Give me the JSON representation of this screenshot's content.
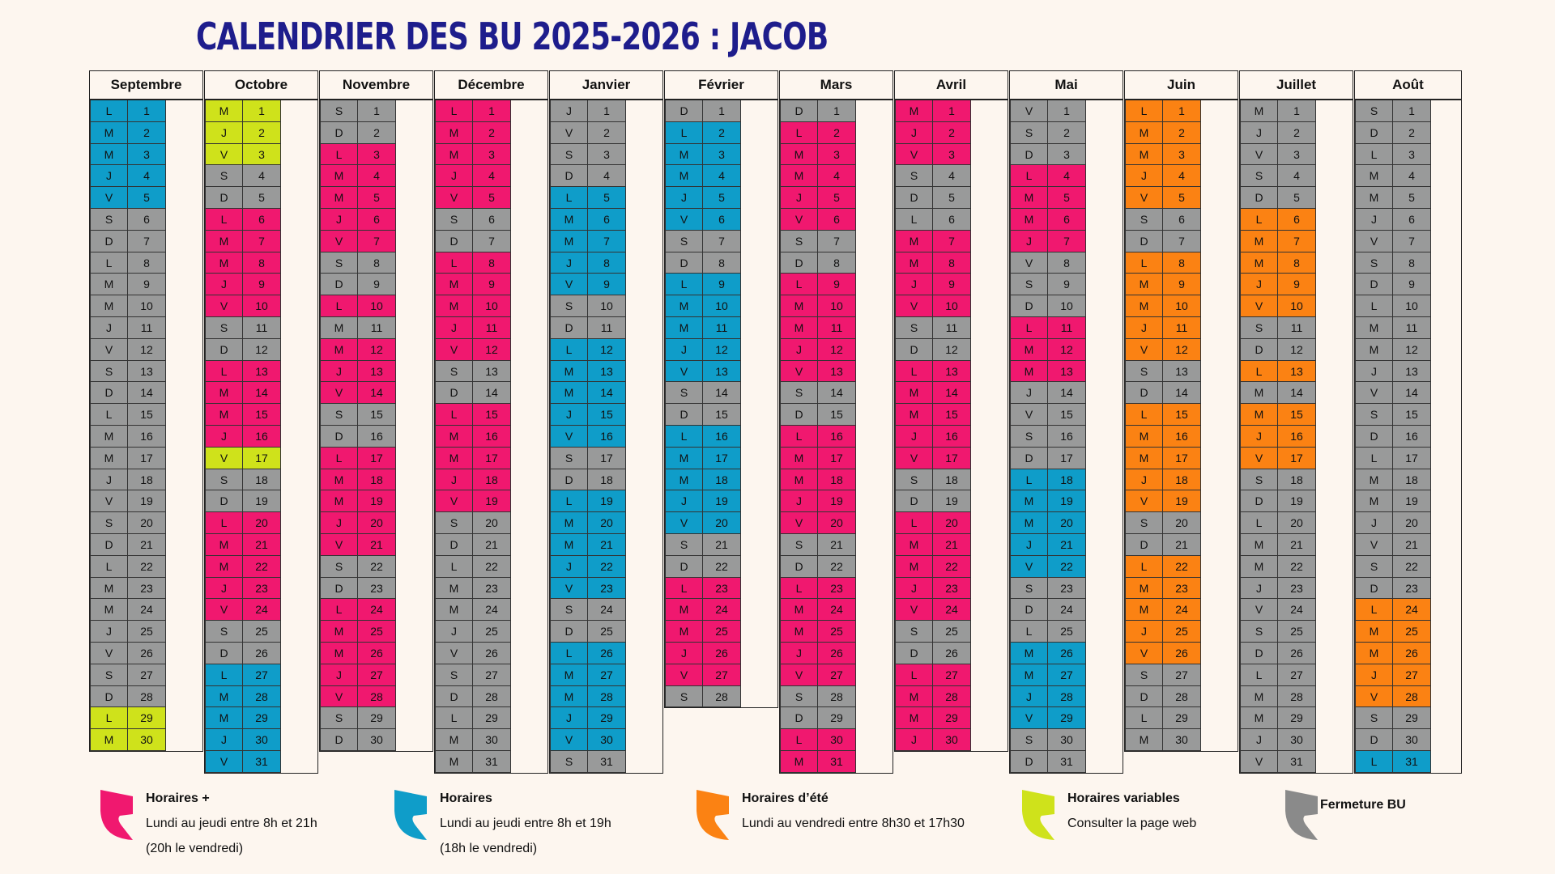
{
  "title": "CALENDRIER DES BU 2025-2026 : JACOB",
  "colors": {
    "G": "#999a9a",
    "P": "#f0186f",
    "B": "#0f9dc9",
    "O": "#fb8213",
    "Y": "#cfe21b"
  },
  "months": [
    {
      "name": "Septembre",
      "days": [
        "L",
        "M",
        "M",
        "J",
        "V",
        "S",
        "D",
        "L",
        "M",
        "M",
        "J",
        "V",
        "S",
        "D",
        "L",
        "M",
        "M",
        "J",
        "V",
        "S",
        "D",
        "L",
        "M",
        "M",
        "J",
        "V",
        "S",
        "D",
        "L",
        "M"
      ],
      "colors": [
        "B",
        "B",
        "B",
        "B",
        "B",
        "G",
        "G",
        "G",
        "G",
        "G",
        "G",
        "G",
        "G",
        "G",
        "G",
        "G",
        "G",
        "G",
        "G",
        "G",
        "G",
        "G",
        "G",
        "G",
        "G",
        "G",
        "G",
        "G",
        "Y",
        "Y"
      ]
    },
    {
      "name": "Octobre",
      "days": [
        "M",
        "J",
        "V",
        "S",
        "D",
        "L",
        "M",
        "M",
        "J",
        "V",
        "S",
        "D",
        "L",
        "M",
        "M",
        "J",
        "V",
        "S",
        "D",
        "L",
        "M",
        "M",
        "J",
        "V",
        "S",
        "D",
        "L",
        "M",
        "M",
        "J",
        "V"
      ],
      "colors": [
        "Y",
        "Y",
        "Y",
        "G",
        "G",
        "P",
        "P",
        "P",
        "P",
        "P",
        "G",
        "G",
        "P",
        "P",
        "P",
        "P",
        "Y",
        "G",
        "G",
        "P",
        "P",
        "P",
        "P",
        "P",
        "G",
        "G",
        "B",
        "B",
        "B",
        "B",
        "B"
      ]
    },
    {
      "name": "Novembre",
      "days": [
        "S",
        "D",
        "L",
        "M",
        "M",
        "J",
        "V",
        "S",
        "D",
        "L",
        "M",
        "M",
        "J",
        "V",
        "S",
        "D",
        "L",
        "M",
        "M",
        "J",
        "V",
        "S",
        "D",
        "L",
        "M",
        "M",
        "J",
        "V",
        "S",
        "D"
      ],
      "colors": [
        "G",
        "G",
        "P",
        "P",
        "P",
        "P",
        "P",
        "G",
        "G",
        "P",
        "G",
        "P",
        "P",
        "P",
        "G",
        "G",
        "P",
        "P",
        "P",
        "P",
        "P",
        "G",
        "G",
        "P",
        "P",
        "P",
        "P",
        "P",
        "G",
        "G"
      ]
    },
    {
      "name": "Décembre",
      "days": [
        "L",
        "M",
        "M",
        "J",
        "V",
        "S",
        "D",
        "L",
        "M",
        "M",
        "J",
        "V",
        "S",
        "D",
        "L",
        "M",
        "M",
        "J",
        "V",
        "S",
        "D",
        "L",
        "M",
        "M",
        "J",
        "V",
        "S",
        "D",
        "L",
        "M",
        "M"
      ],
      "colors": [
        "P",
        "P",
        "P",
        "P",
        "P",
        "G",
        "G",
        "P",
        "P",
        "P",
        "P",
        "P",
        "G",
        "G",
        "P",
        "P",
        "P",
        "P",
        "P",
        "G",
        "G",
        "G",
        "G",
        "G",
        "G",
        "G",
        "G",
        "G",
        "G",
        "G",
        "G"
      ]
    },
    {
      "name": "Janvier",
      "days": [
        "J",
        "V",
        "S",
        "D",
        "L",
        "M",
        "M",
        "J",
        "V",
        "S",
        "D",
        "L",
        "M",
        "M",
        "J",
        "V",
        "S",
        "D",
        "L",
        "M",
        "M",
        "J",
        "V",
        "S",
        "D",
        "L",
        "M",
        "M",
        "J",
        "V",
        "S"
      ],
      "colors": [
        "G",
        "G",
        "G",
        "G",
        "B",
        "B",
        "B",
        "B",
        "B",
        "G",
        "G",
        "B",
        "B",
        "B",
        "B",
        "B",
        "G",
        "G",
        "B",
        "B",
        "B",
        "B",
        "B",
        "G",
        "G",
        "B",
        "B",
        "B",
        "B",
        "B",
        "G"
      ]
    },
    {
      "name": "Février",
      "days": [
        "D",
        "L",
        "M",
        "M",
        "J",
        "V",
        "S",
        "D",
        "L",
        "M",
        "M",
        "J",
        "V",
        "S",
        "D",
        "L",
        "M",
        "M",
        "J",
        "V",
        "S",
        "D",
        "L",
        "M",
        "M",
        "J",
        "V",
        "S"
      ],
      "colors": [
        "G",
        "B",
        "B",
        "B",
        "B",
        "B",
        "G",
        "G",
        "B",
        "B",
        "B",
        "B",
        "B",
        "G",
        "G",
        "B",
        "B",
        "B",
        "B",
        "B",
        "G",
        "G",
        "P",
        "P",
        "P",
        "P",
        "P",
        "G"
      ]
    },
    {
      "name": "Mars",
      "days": [
        "D",
        "L",
        "M",
        "M",
        "J",
        "V",
        "S",
        "D",
        "L",
        "M",
        "M",
        "J",
        "V",
        "S",
        "D",
        "L",
        "M",
        "M",
        "J",
        "V",
        "S",
        "D",
        "L",
        "M",
        "M",
        "J",
        "V",
        "S",
        "D",
        "L",
        "M"
      ],
      "colors": [
        "G",
        "P",
        "P",
        "P",
        "P",
        "P",
        "G",
        "G",
        "P",
        "P",
        "P",
        "P",
        "P",
        "G",
        "G",
        "P",
        "P",
        "P",
        "P",
        "P",
        "G",
        "G",
        "P",
        "P",
        "P",
        "P",
        "P",
        "G",
        "G",
        "P",
        "P"
      ]
    },
    {
      "name": "Avril",
      "days": [
        "M",
        "J",
        "V",
        "S",
        "D",
        "L",
        "M",
        "M",
        "J",
        "V",
        "S",
        "D",
        "L",
        "M",
        "M",
        "J",
        "V",
        "S",
        "D",
        "L",
        "M",
        "M",
        "J",
        "V",
        "S",
        "D",
        "L",
        "M",
        "M",
        "J"
      ],
      "colors": [
        "P",
        "P",
        "P",
        "G",
        "G",
        "G",
        "P",
        "P",
        "P",
        "P",
        "G",
        "G",
        "P",
        "P",
        "P",
        "P",
        "P",
        "G",
        "G",
        "P",
        "P",
        "P",
        "P",
        "P",
        "G",
        "G",
        "P",
        "P",
        "P",
        "P"
      ]
    },
    {
      "name": "Mai",
      "days": [
        "V",
        "S",
        "D",
        "L",
        "M",
        "M",
        "J",
        "V",
        "S",
        "D",
        "L",
        "M",
        "M",
        "J",
        "V",
        "S",
        "D",
        "L",
        "M",
        "M",
        "J",
        "V",
        "S",
        "D",
        "L",
        "M",
        "M",
        "J",
        "V",
        "S",
        "D"
      ],
      "colors": [
        "G",
        "G",
        "G",
        "P",
        "P",
        "P",
        "P",
        "G",
        "G",
        "G",
        "P",
        "P",
        "P",
        "G",
        "G",
        "G",
        "G",
        "B",
        "B",
        "B",
        "B",
        "B",
        "G",
        "G",
        "G",
        "B",
        "B",
        "B",
        "B",
        "G",
        "G"
      ]
    },
    {
      "name": "Juin",
      "days": [
        "L",
        "M",
        "M",
        "J",
        "V",
        "S",
        "D",
        "L",
        "M",
        "M",
        "J",
        "V",
        "S",
        "D",
        "L",
        "M",
        "M",
        "J",
        "V",
        "S",
        "D",
        "L",
        "M",
        "M",
        "J",
        "V",
        "S",
        "D",
        "L",
        "M"
      ],
      "colors": [
        "O",
        "O",
        "O",
        "O",
        "O",
        "G",
        "G",
        "O",
        "O",
        "O",
        "O",
        "O",
        "G",
        "G",
        "O",
        "O",
        "O",
        "O",
        "O",
        "G",
        "G",
        "O",
        "O",
        "O",
        "O",
        "O",
        "G",
        "G",
        "G",
        "G"
      ]
    },
    {
      "name": "Juillet",
      "days": [
        "M",
        "J",
        "V",
        "S",
        "D",
        "L",
        "M",
        "M",
        "J",
        "V",
        "S",
        "D",
        "L",
        "M",
        "M",
        "J",
        "V",
        "S",
        "D",
        "L",
        "M",
        "M",
        "J",
        "V",
        "S",
        "D",
        "L",
        "M",
        "M",
        "J",
        "V"
      ],
      "colors": [
        "G",
        "G",
        "G",
        "G",
        "G",
        "O",
        "O",
        "O",
        "O",
        "O",
        "G",
        "G",
        "O",
        "G",
        "O",
        "O",
        "O",
        "G",
        "G",
        "G",
        "G",
        "G",
        "G",
        "G",
        "G",
        "G",
        "G",
        "G",
        "G",
        "G",
        "G"
      ]
    },
    {
      "name": "Août",
      "days": [
        "S",
        "D",
        "L",
        "M",
        "M",
        "J",
        "V",
        "S",
        "D",
        "L",
        "M",
        "M",
        "J",
        "V",
        "S",
        "D",
        "L",
        "M",
        "M",
        "J",
        "V",
        "S",
        "D",
        "L",
        "M",
        "M",
        "J",
        "V",
        "S",
        "D",
        "L"
      ],
      "colors": [
        "G",
        "G",
        "G",
        "G",
        "G",
        "G",
        "G",
        "G",
        "G",
        "G",
        "G",
        "G",
        "G",
        "G",
        "G",
        "G",
        "G",
        "G",
        "G",
        "G",
        "G",
        "G",
        "G",
        "O",
        "O",
        "O",
        "O",
        "O",
        "G",
        "G",
        "B"
      ]
    }
  ],
  "legend": [
    {
      "title": "Horaires  +",
      "lines": [
        "Lundi au jeudi entre 8h et 21h",
        " (20h le vendredi)"
      ],
      "color": "#f0186f"
    },
    {
      "title": "Horaires",
      "lines": [
        "Lundi au jeudi entre 8h et 19h",
        "(18h le vendredi)"
      ],
      "color": "#0f9dc9"
    },
    {
      "title": "Horaires d’été",
      "lines": [
        "Lundi au vendredi entre  8h30 et 17h30"
      ],
      "color": "#fb8213"
    },
    {
      "title": "Horaires variables",
      "lines": [
        "Consulter la page web"
      ],
      "color": "#cfe21b"
    },
    {
      "title": "Fermeture BU",
      "lines": [],
      "color": "#8a8a8a"
    }
  ]
}
